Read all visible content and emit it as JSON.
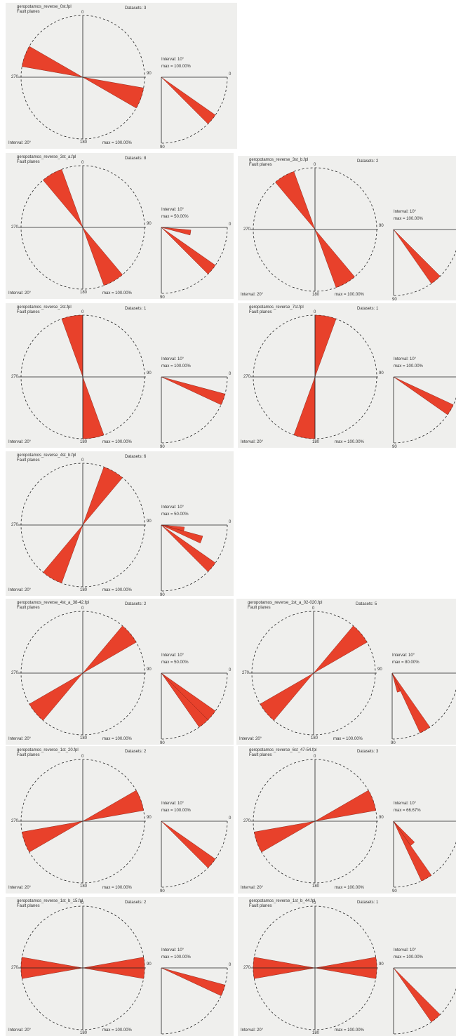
{
  "colors": {
    "petal": "#e8412b",
    "panel_bg": "#efefed",
    "line": "#222222"
  },
  "panels": [
    {
      "filename": "geropotamos_reverse_0st.fpl",
      "subtitle": "Fault planes",
      "datasets": "Datasets: 3",
      "interval_circle": "Interval: 20°",
      "max_circle": "max = 100.00%",
      "interval_dip": "Interval: 10°",
      "max_dip": "max = 100.00%",
      "azimuths": [
        110,
        290
      ],
      "dip_petals": [
        {
          "angle": 40,
          "len": 1
        }
      ]
    },
    {
      "filename": "geropotamos_reverse_3st_a.fpl",
      "subtitle": "Fault planes",
      "datasets": "Datasets: 8",
      "interval_circle": "Interval: 20°",
      "max_circle": "max = 100.00%",
      "interval_dip": "Interval: 10°",
      "max_dip": "max = 50.00%",
      "azimuths": [
        150,
        330
      ],
      "dip_petals": [
        {
          "angle": 10,
          "len": 0.45
        },
        {
          "angle": 40,
          "len": 1
        }
      ]
    },
    {
      "filename": "geropotamos_reverse_3st_b.fpl",
      "subtitle": "Fault planes",
      "datasets": "Datasets: 2",
      "interval_circle": "Interval: 20°",
      "max_circle": "max = 100.00%",
      "interval_dip": "Interval: 10°",
      "max_dip": "max = 100.00%",
      "azimuths": [
        150,
        330
      ],
      "dip_petals": [
        {
          "angle": 50,
          "len": 1
        }
      ]
    },
    {
      "filename": "geropotamos_reverse_2st.fpl",
      "subtitle": "Fault planes",
      "datasets": "Datasets: 1",
      "interval_circle": "Interval: 20°",
      "max_circle": "max = 100.00%",
      "interval_dip": "Interval: 10°",
      "max_dip": "max = 100.00%",
      "azimuths": [
        170,
        350
      ],
      "dip_petals": [
        {
          "angle": 20,
          "len": 1
        }
      ]
    },
    {
      "filename": "geropotamos_reverse_7st.fpl",
      "subtitle": "Fault planes",
      "datasets": "Datasets: 1",
      "interval_circle": "Interval: 20°",
      "max_circle": "max = 100.00%",
      "interval_dip": "Interval: 10°",
      "max_dip": "max = 100.00%",
      "azimuths": [
        10,
        190
      ],
      "dip_petals": [
        {
          "angle": 30,
          "len": 1
        }
      ]
    },
    {
      "filename": "geropotamos_reverse_4st_b.fpl",
      "subtitle": "Fault planes",
      "datasets": "Datasets: 6",
      "interval_circle": "Interval: 20°",
      "max_circle": "max = 100.00%",
      "interval_dip": "Interval: 10°",
      "max_dip": "max = 50.00%",
      "azimuths": [
        30,
        210
      ],
      "dip_petals": [
        {
          "angle": 10,
          "len": 0.35
        },
        {
          "angle": 20,
          "len": 0.65
        },
        {
          "angle": 40,
          "len": 1
        }
      ]
    },
    {
      "filename": "geropotamos_reverse_4st_a_38-42.fpl",
      "subtitle": "Fault planes",
      "datasets": "Datasets: 2",
      "interval_circle": "Interval: 20°",
      "max_circle": "max = 100.00%",
      "interval_dip": "Interval: 10°",
      "max_dip": "max = 50.00%",
      "azimuths": [
        50,
        230
      ],
      "dip_petals": [
        {
          "angle": 40,
          "len": 1
        },
        {
          "angle": 50,
          "len": 1
        }
      ]
    },
    {
      "filename": "geropotamos_reverse_1st_a_02-020.fpl",
      "subtitle": "Fault planes",
      "datasets": "Datasets: 5",
      "interval_circle": "Interval: 20°",
      "max_circle": "max = 100.00%",
      "interval_dip": "Interval: 10°",
      "max_dip": "max = 80.00%",
      "azimuths": [
        50,
        230
      ],
      "dip_petals": [
        {
          "angle": 60,
          "len": 1
        },
        {
          "angle": 70,
          "len": 0.3
        }
      ]
    },
    {
      "filename": "geropotamos_reverse_1st_20.fpl",
      "subtitle": "Fault planes",
      "datasets": "Datasets: 2",
      "interval_circle": "Interval: 20°",
      "max_circle": "max = 100.00%",
      "interval_dip": "Interval: 10°",
      "max_dip": "max = 100.00%",
      "azimuths": [
        70,
        250
      ],
      "dip_petals": [
        {
          "angle": 40,
          "len": 1
        }
      ]
    },
    {
      "filename": "geropotamos_reverse_6st_47-54.fpl",
      "subtitle": "Fault planes",
      "datasets": "Datasets: 3",
      "interval_circle": "Interval: 20°",
      "max_circle": "max = 100.00%",
      "interval_dip": "Interval: 10°",
      "max_dip": "max = 66.67%",
      "azimuths": [
        70,
        250
      ],
      "dip_petals": [
        {
          "angle": 50,
          "len": 0.45
        },
        {
          "angle": 60,
          "len": 1
        }
      ]
    },
    {
      "filename": "geropotamos_reverse_1st_b_15.fpl",
      "subtitle": "Fault planes",
      "datasets": "Datasets: 2",
      "interval_circle": "Interval: 20°",
      "max_circle": "max = 100.00%",
      "interval_dip": "Interval: 10°",
      "max_dip": "max = 100.00%",
      "azimuths": [
        90,
        270
      ],
      "dip_petals": [
        {
          "angle": 20,
          "len": 1
        }
      ]
    },
    {
      "filename": "geropotamos_reverse_1st_b_44.fpl",
      "subtitle": "Fault planes",
      "datasets": "Datasets: 1",
      "interval_circle": "Interval: 20°",
      "max_circle": "max = 100.00%",
      "interval_dip": "Interval: 10°",
      "max_dip": "max = 100.00%",
      "azimuths": [
        90,
        270
      ],
      "dip_petals": [
        {
          "angle": 50,
          "len": 1
        }
      ]
    }
  ],
  "labels": {
    "n": "0",
    "e": "90",
    "s": "180",
    "w": "270",
    "dip0": "0",
    "dip90": "90"
  }
}
